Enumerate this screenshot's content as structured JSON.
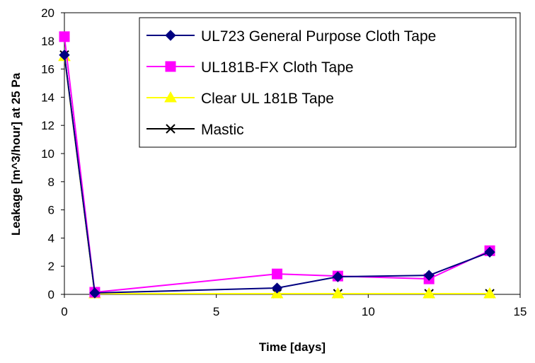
{
  "chart_data": {
    "type": "line",
    "xlabel": "Time [days]",
    "ylabel": "Leakage [m^3/hour] at 25 Pa",
    "xlim": [
      0,
      15
    ],
    "ylim": [
      0,
      20
    ],
    "xticks": [
      0,
      5,
      10,
      15
    ],
    "yticks": [
      0,
      2,
      4,
      6,
      8,
      10,
      12,
      14,
      16,
      18,
      20
    ],
    "grid": false,
    "legend_position": "top-right",
    "series": [
      {
        "name": "UL723 General Purpose Cloth Tape",
        "color": "#000080",
        "marker": "diamond",
        "x": [
          0,
          1,
          7,
          9,
          12,
          14
        ],
        "y": [
          17.0,
          0.1,
          0.45,
          1.25,
          1.35,
          3.0
        ]
      },
      {
        "name": "UL181B-FX Cloth Tape",
        "color": "#FF00FF",
        "marker": "square",
        "x": [
          0,
          1,
          7,
          9,
          12,
          14
        ],
        "y": [
          18.3,
          0.15,
          1.45,
          1.3,
          1.1,
          3.1
        ]
      },
      {
        "name": "Clear UL 181B Tape",
        "color": "#FFFF00",
        "marker": "triangle",
        "x": [
          0,
          1,
          7,
          9,
          12,
          14
        ],
        "y": [
          16.9,
          0.05,
          0.05,
          0.05,
          0.05,
          0.05
        ]
      },
      {
        "name": "Mastic",
        "color": "#000000",
        "marker": "x",
        "x": [
          0,
          1,
          7,
          9,
          12,
          14
        ],
        "y": [
          17.0,
          0.05,
          0.05,
          0.05,
          0.05,
          0.05
        ]
      }
    ]
  }
}
